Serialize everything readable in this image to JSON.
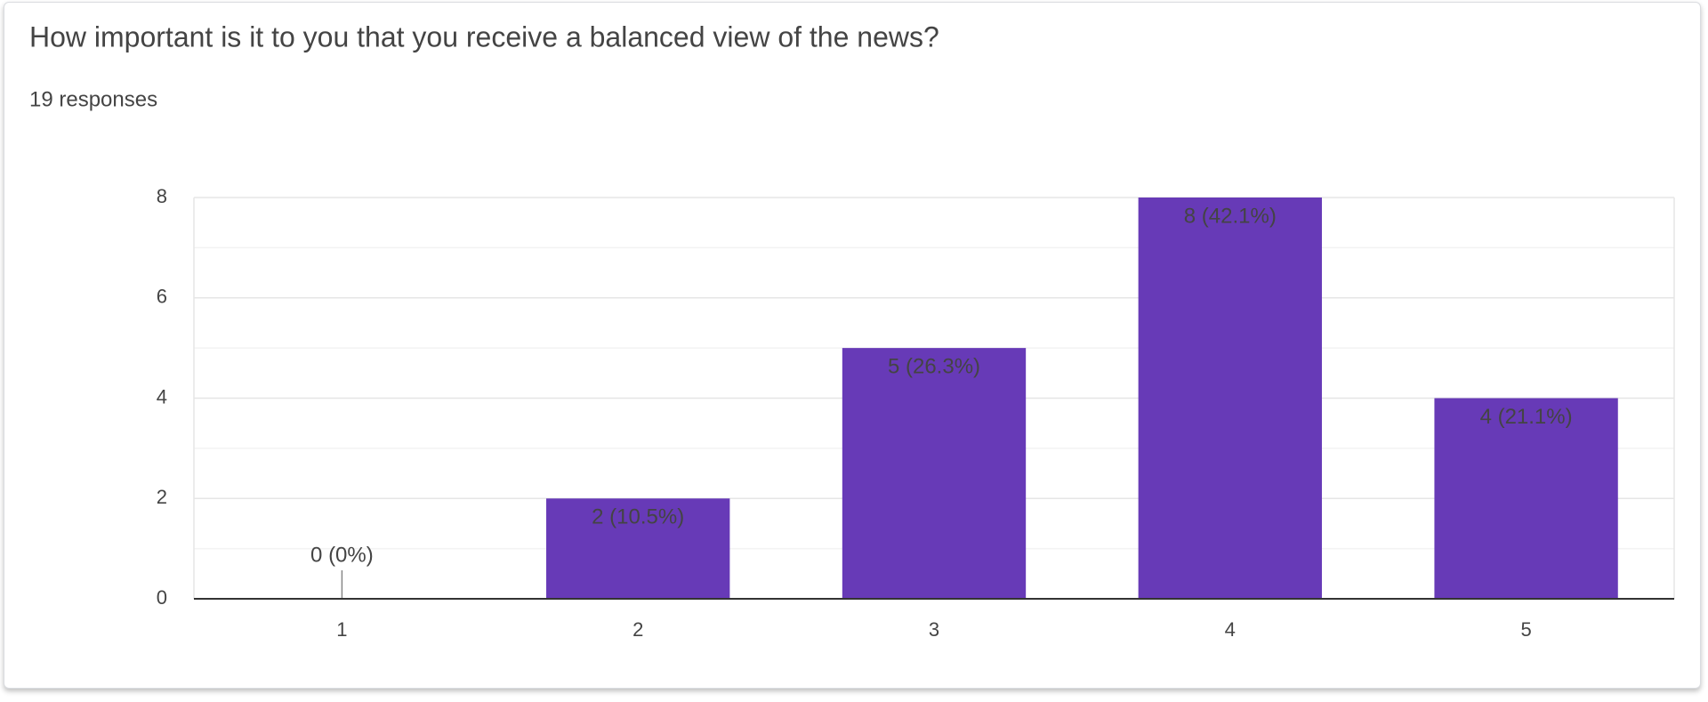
{
  "chart_data": {
    "type": "bar",
    "title": "How important is it to you that you receive a balanced view of the news?",
    "subtitle": "19 responses",
    "categories": [
      "1",
      "2",
      "3",
      "4",
      "5"
    ],
    "values": [
      0,
      2,
      5,
      8,
      4
    ],
    "value_labels": [
      "0 (0%)",
      "2 (10.5%)",
      "5 (26.3%)",
      "8 (42.1%)",
      "4 (21.1%)"
    ],
    "color": "#673ab7",
    "ylim": [
      0,
      8
    ],
    "yticks": [
      0,
      2,
      4,
      6,
      8
    ],
    "minor_yticks": [
      1,
      3,
      5,
      7
    ],
    "grid": true
  }
}
